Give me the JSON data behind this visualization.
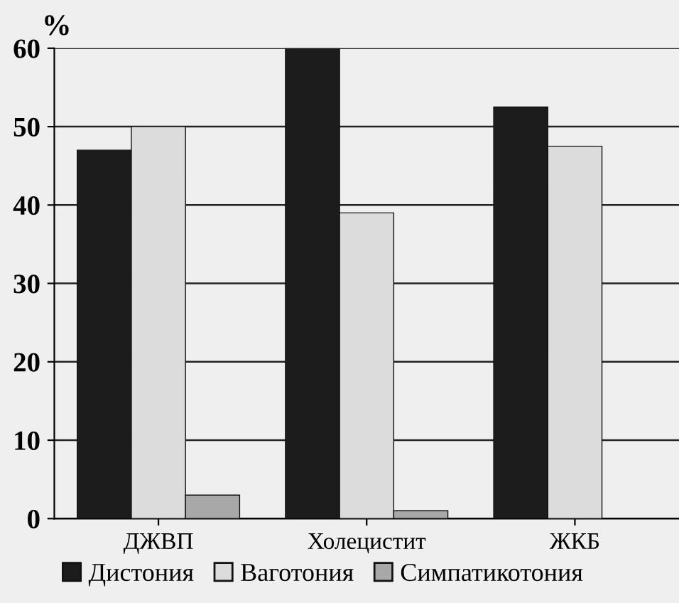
{
  "chart_data": {
    "type": "bar",
    "ylabel": "%",
    "categories": [
      "ДЖВП",
      "Холецистит",
      "ЖКБ"
    ],
    "series": [
      {
        "name": "Дистония",
        "color": "#1c1c1c",
        "values": [
          47,
          60,
          52.5
        ]
      },
      {
        "name": "Ваготония",
        "color": "#dcdcdc",
        "values": [
          50,
          39,
          47.5
        ]
      },
      {
        "name": "Симпатикотония",
        "color": "#a8a8a8",
        "values": [
          3,
          1,
          null
        ]
      }
    ],
    "ylim": [
      0,
      60
    ],
    "yticks": [
      0,
      10,
      20,
      30,
      40,
      50,
      60
    ],
    "grid": "y",
    "legend": "bottom"
  }
}
